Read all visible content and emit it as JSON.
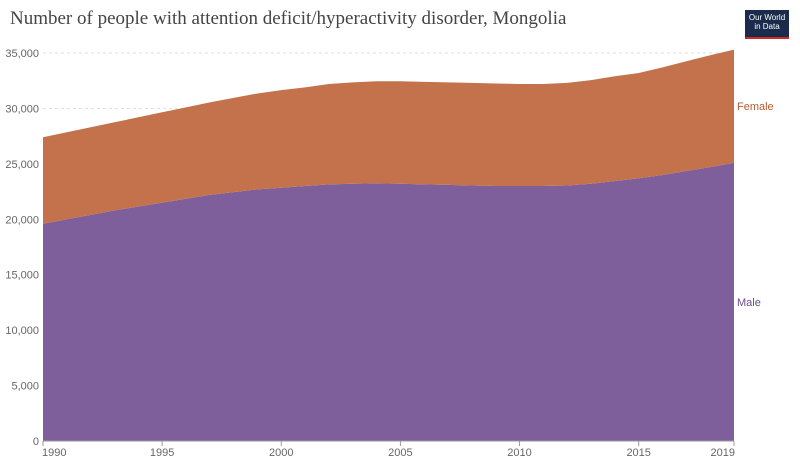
{
  "header": {
    "title": "Number of people with attention deficit/hyperactivity disorder, Mongolia",
    "logo_line1": "Our World",
    "logo_line2": "in Data"
  },
  "colors": {
    "male": "#7f5f9b",
    "female": "#c4724c",
    "female_label": "#b65d34",
    "male_label": "#6b4c8e",
    "grid": "#dddddd",
    "axis": "#999999"
  },
  "chart_data": {
    "type": "area",
    "stacked": true,
    "title": "Number of people with attention deficit/hyperactivity disorder, Mongolia",
    "xlabel": "",
    "ylabel": "",
    "x": [
      1990,
      1991,
      1992,
      1993,
      1994,
      1995,
      1996,
      1997,
      1998,
      1999,
      2000,
      2001,
      2002,
      2003,
      2004,
      2005,
      2006,
      2007,
      2008,
      2009,
      2010,
      2011,
      2012,
      2013,
      2014,
      2015,
      2016,
      2017,
      2018,
      2019
    ],
    "series": [
      {
        "name": "Male",
        "values": [
          19600,
          20000,
          20400,
          20800,
          21150,
          21500,
          21850,
          22200,
          22450,
          22700,
          22850,
          23000,
          23150,
          23200,
          23250,
          23200,
          23150,
          23100,
          23050,
          23000,
          23000,
          23000,
          23050,
          23200,
          23450,
          23700,
          24000,
          24350,
          24700,
          25100
        ]
      },
      {
        "name": "Female",
        "values": [
          7800,
          7850,
          7900,
          7950,
          8050,
          8150,
          8250,
          8350,
          8500,
          8650,
          8800,
          8900,
          9050,
          9150,
          9200,
          9250,
          9250,
          9250,
          9250,
          9250,
          9200,
          9200,
          9250,
          9350,
          9450,
          9500,
          9700,
          9900,
          10100,
          10200
        ]
      }
    ],
    "ylim": [
      0,
      35000
    ],
    "yticks": [
      "0",
      "5,000",
      "10,000",
      "15,000",
      "20,000",
      "25,000",
      "30,000",
      "35,000"
    ],
    "ytick_values": [
      0,
      5000,
      10000,
      15000,
      20000,
      25000,
      30000,
      35000
    ],
    "xticks": [
      "1990",
      "1995",
      "2000",
      "2005",
      "2010",
      "2015",
      "2019"
    ],
    "xtick_values": [
      1990,
      1995,
      2000,
      2005,
      2010,
      2015,
      2019
    ],
    "grid": "horizontal dashed",
    "legend": "right, inline labels"
  }
}
